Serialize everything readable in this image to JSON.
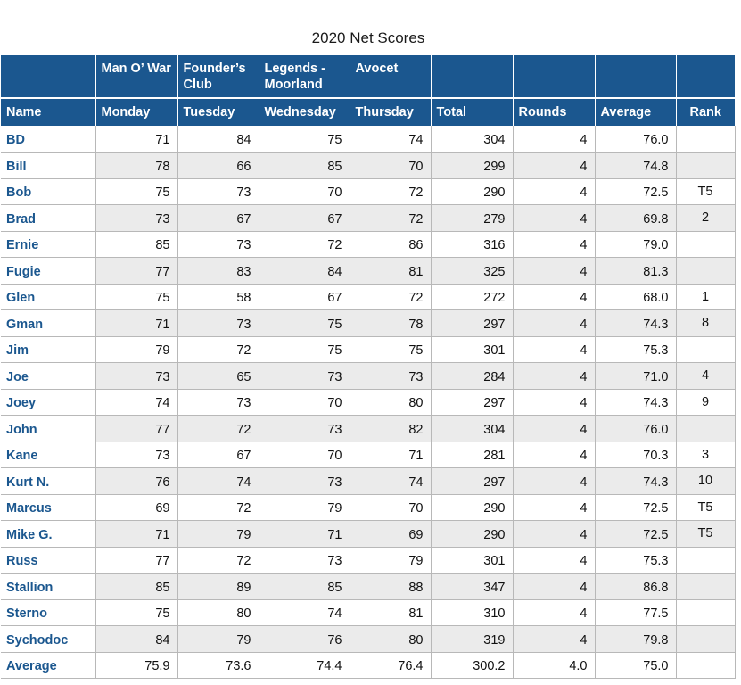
{
  "title": "2020 Net Scores",
  "header_row1": [
    "",
    "Man O’ War",
    "Founder’s Club",
    "Legends - Moorland",
    "Avocet",
    "",
    "",
    "",
    ""
  ],
  "header_row2": [
    "Name",
    "Monday",
    "Tuesday",
    "Wednesday",
    "Thursday",
    "Total",
    "Rounds",
    "Average",
    "Rank"
  ],
  "rows": [
    {
      "name": "BD",
      "mon": "71",
      "tue": "84",
      "wed": "75",
      "thu": "74",
      "total": "304",
      "rounds": "4",
      "avg": "76.0",
      "rank": ""
    },
    {
      "name": "Bill",
      "mon": "78",
      "tue": "66",
      "wed": "85",
      "thu": "70",
      "total": "299",
      "rounds": "4",
      "avg": "74.8",
      "rank": ""
    },
    {
      "name": "Bob",
      "mon": "75",
      "tue": "73",
      "wed": "70",
      "thu": "72",
      "total": "290",
      "rounds": "4",
      "avg": "72.5",
      "rank": "T5"
    },
    {
      "name": "Brad",
      "mon": "73",
      "tue": "67",
      "wed": "67",
      "thu": "72",
      "total": "279",
      "rounds": "4",
      "avg": "69.8",
      "rank": "2"
    },
    {
      "name": "Ernie",
      "mon": "85",
      "tue": "73",
      "wed": "72",
      "thu": "86",
      "total": "316",
      "rounds": "4",
      "avg": "79.0",
      "rank": ""
    },
    {
      "name": "Fugie",
      "mon": "77",
      "tue": "83",
      "wed": "84",
      "thu": "81",
      "total": "325",
      "rounds": "4",
      "avg": "81.3",
      "rank": ""
    },
    {
      "name": "Glen",
      "mon": "75",
      "tue": "58",
      "wed": "67",
      "thu": "72",
      "total": "272",
      "rounds": "4",
      "avg": "68.0",
      "rank": "1"
    },
    {
      "name": "Gman",
      "mon": "71",
      "tue": "73",
      "wed": "75",
      "thu": "78",
      "total": "297",
      "rounds": "4",
      "avg": "74.3",
      "rank": "8"
    },
    {
      "name": "Jim",
      "mon": "79",
      "tue": "72",
      "wed": "75",
      "thu": "75",
      "total": "301",
      "rounds": "4",
      "avg": "75.3",
      "rank": ""
    },
    {
      "name": "Joe",
      "mon": "73",
      "tue": "65",
      "wed": "73",
      "thu": "73",
      "total": "284",
      "rounds": "4",
      "avg": "71.0",
      "rank": "4"
    },
    {
      "name": "Joey",
      "mon": "74",
      "tue": "73",
      "wed": "70",
      "thu": "80",
      "total": "297",
      "rounds": "4",
      "avg": "74.3",
      "rank": "9"
    },
    {
      "name": "John",
      "mon": "77",
      "tue": "72",
      "wed": "73",
      "thu": "82",
      "total": "304",
      "rounds": "4",
      "avg": "76.0",
      "rank": ""
    },
    {
      "name": "Kane",
      "mon": "73",
      "tue": "67",
      "wed": "70",
      "thu": "71",
      "total": "281",
      "rounds": "4",
      "avg": "70.3",
      "rank": "3"
    },
    {
      "name": "Kurt N.",
      "mon": "76",
      "tue": "74",
      "wed": "73",
      "thu": "74",
      "total": "297",
      "rounds": "4",
      "avg": "74.3",
      "rank": "10"
    },
    {
      "name": "Marcus",
      "mon": "69",
      "tue": "72",
      "wed": "79",
      "thu": "70",
      "total": "290",
      "rounds": "4",
      "avg": "72.5",
      "rank": "T5"
    },
    {
      "name": "Mike G.",
      "mon": "71",
      "tue": "79",
      "wed": "71",
      "thu": "69",
      "total": "290",
      "rounds": "4",
      "avg": "72.5",
      "rank": "T5"
    },
    {
      "name": "Russ",
      "mon": "77",
      "tue": "72",
      "wed": "73",
      "thu": "79",
      "total": "301",
      "rounds": "4",
      "avg": "75.3",
      "rank": ""
    },
    {
      "name": "Stallion",
      "mon": "85",
      "tue": "89",
      "wed": "85",
      "thu": "88",
      "total": "347",
      "rounds": "4",
      "avg": "86.8",
      "rank": ""
    },
    {
      "name": "Sterno",
      "mon": "75",
      "tue": "80",
      "wed": "74",
      "thu": "81",
      "total": "310",
      "rounds": "4",
      "avg": "77.5",
      "rank": ""
    },
    {
      "name": "Sychodoc",
      "mon": "84",
      "tue": "79",
      "wed": "76",
      "thu": "80",
      "total": "319",
      "rounds": "4",
      "avg": "79.8",
      "rank": ""
    }
  ],
  "average_row": {
    "name": "Average",
    "mon": "75.9",
    "tue": "73.6",
    "wed": "74.4",
    "thu": "76.4",
    "total": "300.2",
    "rounds": "4.0",
    "avg": "75.0",
    "rank": ""
  },
  "colors": {
    "header_bg": "#1b578f",
    "name_text": "#1b578f",
    "stripe_bg": "#ebebeb",
    "grid": "#b8b8b8"
  }
}
